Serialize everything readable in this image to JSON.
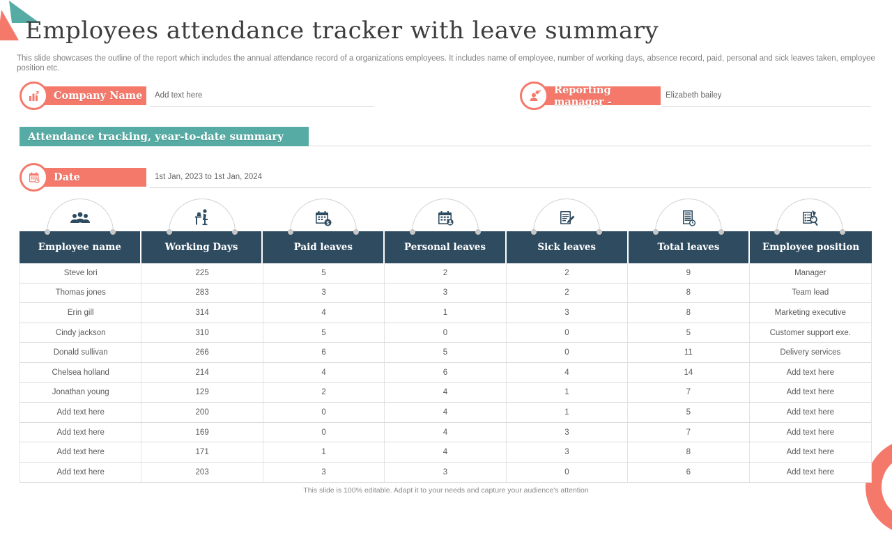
{
  "slide": {
    "title": "Employees attendance tracker with leave summary",
    "description": "This slide showcases the outline of the report which includes the annual attendance record of a organizations employees. It includes name of employee, number of working days, absence record, paid, personal and sick leaves taken, employee position etc.",
    "footer": "This slide is 100% editable.  Adapt it to your needs and capture your audience's attention"
  },
  "fields": {
    "company": {
      "label": "Company Name",
      "value": "Add text here",
      "icon": "company-building-icon"
    },
    "reporting_manager": {
      "label": "Reporting manager -",
      "value": "Elizabeth bailey",
      "icon": "manager-gear-icon"
    },
    "date": {
      "label": "Date",
      "value": "1st Jan,  2023 to 1st Jan,  2024",
      "icon": "calendar-clock-icon"
    }
  },
  "banner": {
    "label": "Attendance tracking,  year-to-date summary"
  },
  "table": {
    "columns": [
      {
        "label": "Employee name",
        "icon": "employees-group-icon"
      },
      {
        "label": "Working Days",
        "icon": "person-at-desk-icon"
      },
      {
        "label": "Paid leaves",
        "icon": "calendar-money-icon"
      },
      {
        "label": "Personal leaves",
        "icon": "calendar-person-icon"
      },
      {
        "label": "Sick leaves",
        "icon": "clipboard-pencil-icon"
      },
      {
        "label": "Total leaves",
        "icon": "report-clock-icon"
      },
      {
        "label": "Employee position",
        "icon": "document-magnifier-icon"
      }
    ],
    "rows": [
      [
        "Steve lori",
        "225",
        "5",
        "2",
        "2",
        "9",
        "Manager"
      ],
      [
        "Thomas jones",
        "283",
        "3",
        "3",
        "2",
        "8",
        "Team lead"
      ],
      [
        "Erin gill",
        "314",
        "4",
        "1",
        "3",
        "8",
        "Marketing executive"
      ],
      [
        "Cindy jackson",
        "310",
        "5",
        "0",
        "0",
        "5",
        "Customer support exe."
      ],
      [
        "Donald sullivan",
        "266",
        "6",
        "5",
        "0",
        "11",
        "Delivery services"
      ],
      [
        "Chelsea holland",
        "214",
        "4",
        "6",
        "4",
        "14",
        "Add text here"
      ],
      [
        "Jonathan young",
        "129",
        "2",
        "4",
        "1",
        "7",
        "Add text here"
      ],
      [
        "Add text here",
        "200",
        "0",
        "4",
        "1",
        "5",
        "Add text here"
      ],
      [
        "Add text here",
        "169",
        "0",
        "4",
        "3",
        "7",
        "Add text here"
      ],
      [
        "Add text here",
        "171",
        "1",
        "4",
        "3",
        "8",
        "Add text here"
      ],
      [
        "Add text here",
        "203",
        "3",
        "3",
        "0",
        "6",
        "Add text here"
      ]
    ]
  },
  "colors": {
    "salmon": "#F4796B",
    "teal": "#56ACA4",
    "header_navy": "#2E4B60"
  }
}
